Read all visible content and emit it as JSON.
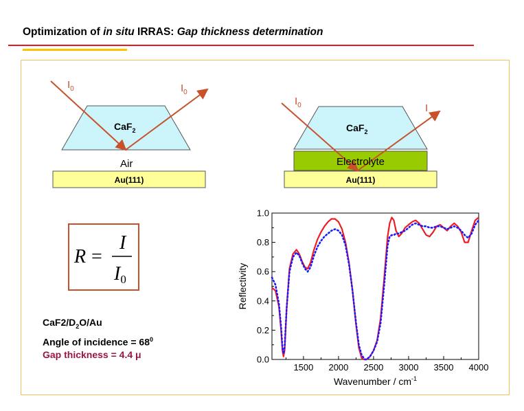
{
  "slide": {
    "title_part1": "Optimization of ",
    "title_italic1": "in situ",
    "title_part2": " IRRAS:  ",
    "title_italic2": "Gap thickness determination"
  },
  "left_setup": {
    "incident_label": "I",
    "incident_sub": "0",
    "reflected_label": "I",
    "reflected_sub": "0",
    "prism_label": "CaF",
    "prism_sub": "2",
    "medium_label": "Air",
    "substrate_label": "Au(111)"
  },
  "right_setup": {
    "incident_label": "I",
    "incident_sub": "0",
    "reflected_label": "I",
    "prism_label": "CaF",
    "prism_sub": "2",
    "medium_label": "Electrolyte",
    "substrate_label": "Au(111)"
  },
  "equation": {
    "lhs": "R",
    "eq": "=",
    "numerator": "I",
    "denominator": "I",
    "denominator_sub": "0"
  },
  "info": {
    "line1_a": "CaF2/D",
    "line1_sub": "2",
    "line1_b": "O/Au",
    "line2_a": "Angle of incidence = 68",
    "line2_sup": "0",
    "line3_a": "Gap thickness = 4.4 ",
    "line3_unit": "μ"
  },
  "colors": {
    "title_rule": "#e8191b",
    "accent_rule": "#ffc000",
    "arrow": "#c8502a",
    "prism_fill": "#ccf5fb",
    "electrolyte_fill": "#99cc00",
    "substrate_fill": "#ffff99",
    "gap_text": "#9b1446",
    "measured_series": "#ee1c25",
    "fit_series": "#1a1aff"
  },
  "chart_data": {
    "type": "line",
    "xlabel": "Wavenumber / cm",
    "xlabel_sup": "-1",
    "ylabel": "Reflectivity",
    "xlim": [
      1050,
      4000
    ],
    "ylim": [
      0.0,
      1.0
    ],
    "xticks": [
      1500,
      2000,
      2500,
      3000,
      3500,
      4000
    ],
    "xtick_labels": [
      "1500",
      "2000",
      "2500",
      "3000",
      "3500",
      "4000"
    ],
    "yticks": [
      0.0,
      0.2,
      0.4,
      0.6,
      0.8,
      1.0
    ],
    "ytick_labels": [
      "0.0",
      "0.2",
      "0.4",
      "0.6",
      "0.8",
      "1.0"
    ],
    "grid": false,
    "series": [
      {
        "style": "solid",
        "color": "#ee1c25",
        "x": [
          1050,
          1100,
          1150,
          1180,
          1200,
          1215,
          1230,
          1260,
          1300,
          1350,
          1400,
          1440,
          1480,
          1520,
          1560,
          1600,
          1650,
          1700,
          1750,
          1800,
          1850,
          1900,
          1950,
          2000,
          2050,
          2100,
          2150,
          2200,
          2250,
          2290,
          2330,
          2360,
          2380,
          2400,
          2450,
          2500,
          2550,
          2600,
          2650,
          2700,
          2730,
          2760,
          2790,
          2820,
          2860,
          2900,
          2950,
          3000,
          3050,
          3100,
          3150,
          3200,
          3250,
          3300,
          3350,
          3400,
          3450,
          3500,
          3550,
          3600,
          3650,
          3700,
          3750,
          3800,
          3850,
          3900,
          3950,
          4000
        ],
        "y": [
          0.49,
          0.47,
          0.36,
          0.2,
          0.06,
          0.02,
          0.06,
          0.35,
          0.62,
          0.72,
          0.75,
          0.72,
          0.67,
          0.63,
          0.62,
          0.66,
          0.75,
          0.82,
          0.87,
          0.91,
          0.94,
          0.96,
          0.96,
          0.94,
          0.89,
          0.8,
          0.66,
          0.47,
          0.24,
          0.08,
          0.01,
          0.0,
          0.0,
          0.0,
          0.02,
          0.06,
          0.13,
          0.28,
          0.55,
          0.84,
          0.93,
          0.97,
          0.95,
          0.88,
          0.84,
          0.86,
          0.9,
          0.92,
          0.94,
          0.95,
          0.93,
          0.89,
          0.85,
          0.84,
          0.87,
          0.91,
          0.92,
          0.9,
          0.88,
          0.91,
          0.93,
          0.91,
          0.87,
          0.8,
          0.8,
          0.88,
          0.95,
          0.97
        ]
      },
      {
        "style": "dotted",
        "color": "#1a1aff",
        "x": [
          1050,
          1100,
          1150,
          1180,
          1200,
          1215,
          1230,
          1260,
          1300,
          1350,
          1400,
          1440,
          1480,
          1520,
          1560,
          1600,
          1650,
          1700,
          1750,
          1800,
          1850,
          1900,
          1950,
          2000,
          2050,
          2100,
          2150,
          2200,
          2250,
          2290,
          2330,
          2360,
          2380,
          2400,
          2450,
          2500,
          2550,
          2600,
          2650,
          2700,
          2730,
          2760,
          2790,
          2820,
          2860,
          2900,
          2950,
          3000,
          3050,
          3100,
          3150,
          3200,
          3250,
          3300,
          3350,
          3400,
          3450,
          3500,
          3550,
          3600,
          3650,
          3700,
          3750,
          3800,
          3850,
          3900,
          3950,
          4000
        ],
        "y": [
          0.56,
          0.51,
          0.38,
          0.22,
          0.08,
          0.04,
          0.08,
          0.35,
          0.6,
          0.7,
          0.73,
          0.71,
          0.66,
          0.62,
          0.6,
          0.63,
          0.71,
          0.77,
          0.81,
          0.84,
          0.86,
          0.88,
          0.89,
          0.88,
          0.85,
          0.78,
          0.65,
          0.47,
          0.25,
          0.1,
          0.03,
          0.01,
          0.0,
          0.0,
          0.02,
          0.06,
          0.12,
          0.25,
          0.5,
          0.78,
          0.84,
          0.85,
          0.85,
          0.86,
          0.86,
          0.87,
          0.88,
          0.9,
          0.92,
          0.93,
          0.92,
          0.91,
          0.91,
          0.9,
          0.9,
          0.91,
          0.91,
          0.9,
          0.89,
          0.9,
          0.91,
          0.9,
          0.88,
          0.85,
          0.83,
          0.86,
          0.92,
          0.95
        ]
      }
    ]
  }
}
